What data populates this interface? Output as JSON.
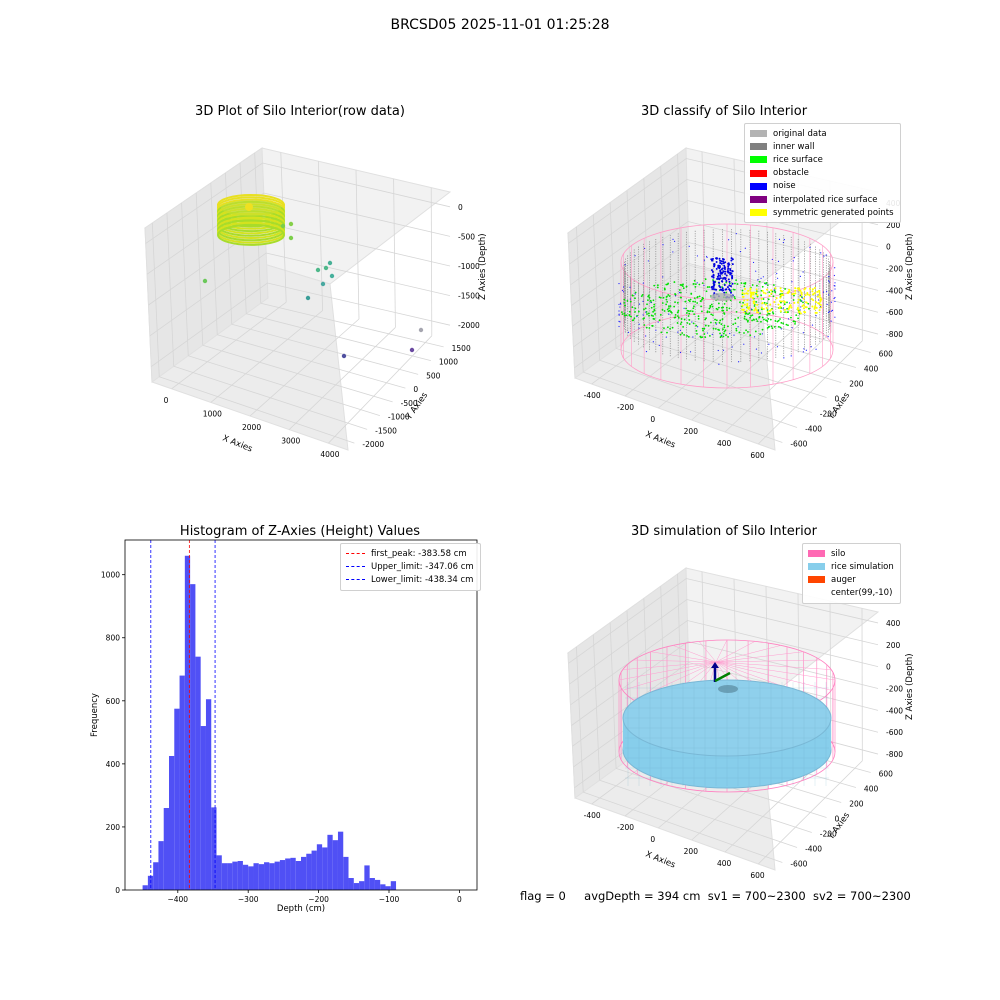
{
  "suptitle": "BRCSD05 2025-11-01 01:25:28",
  "panels": {
    "raw": {
      "title": "3D Plot of Silo Interior(row data)",
      "xlabel": "X Axies",
      "ylabel": "Y Axies",
      "zlabel": "Z Axies (Depth)",
      "xticks": [
        "0",
        "1000",
        "2000",
        "3000",
        "4000"
      ],
      "yticks": [
        "-2000",
        "-1500",
        "-1000",
        "-500",
        "0",
        "500",
        "1000",
        "1500"
      ],
      "zticks": [
        "0",
        "-500",
        "-1000",
        "-1500",
        "-2000"
      ]
    },
    "classify": {
      "title": "3D classify of Silo Interior",
      "xlabel": "X Axies",
      "ylabel": "Y Axies",
      "zlabel": "Z Axies (Depth)",
      "xticks": [
        "-400",
        "-200",
        "0",
        "200",
        "400",
        "600"
      ],
      "yticks": [
        "-600",
        "-400",
        "-200",
        "0",
        "200",
        "400",
        "600"
      ],
      "zticks": [
        "400",
        "200",
        "0",
        "-200",
        "-400",
        "-600",
        "-800"
      ],
      "legend": [
        {
          "label": "original data",
          "color": "#b3b3b3"
        },
        {
          "label": "inner wall",
          "color": "#808080"
        },
        {
          "label": "rice surface",
          "color": "#00ff00"
        },
        {
          "label": "obstacle",
          "color": "#ff0000"
        },
        {
          "label": "noise",
          "color": "#0000ff"
        },
        {
          "label": "interpolated rice surface",
          "color": "#800080"
        },
        {
          "label": "symmetric generated points",
          "color": "#ffff00"
        }
      ]
    },
    "simulation": {
      "title": "3D simulation of Silo Interior",
      "xlabel": "X Axies",
      "ylabel": "Y Axies",
      "zlabel": "Z Axies (Depth)",
      "xticks": [
        "-400",
        "-200",
        "0",
        "200",
        "400",
        "600"
      ],
      "yticks": [
        "-600",
        "-400",
        "-200",
        "0",
        "200",
        "400",
        "600"
      ],
      "zticks": [
        "400",
        "200",
        "0",
        "-200",
        "-400",
        "-600",
        "-800"
      ],
      "legend": [
        {
          "label": "silo",
          "color": "#ff69b4"
        },
        {
          "label": "rice simulation",
          "color": "#87ceeb"
        },
        {
          "label": "auger",
          "color": "#ff4500"
        },
        {
          "label": "center(99,-10)",
          "color": ""
        }
      ]
    }
  },
  "chart_data": {
    "type": "bar",
    "title": "Histogram of Z-Axies (Height) Values",
    "xlabel": "Depth (cm)",
    "ylabel": "Frequency",
    "xlim": [
      -475,
      25
    ],
    "ylim": [
      0,
      1110
    ],
    "xticks": [
      -400,
      -300,
      -200,
      -100,
      0
    ],
    "yticks": [
      0,
      200,
      400,
      600,
      800,
      1000
    ],
    "bin_start": -450,
    "bin_width": 7.5,
    "values": [
      15,
      45,
      88,
      155,
      260,
      425,
      575,
      680,
      1060,
      970,
      740,
      520,
      605,
      262,
      110,
      85,
      85,
      90,
      92,
      80,
      75,
      85,
      82,
      88,
      85,
      90,
      95,
      100,
      102,
      92,
      105,
      115,
      125,
      145,
      135,
      175,
      158,
      185,
      105,
      38,
      22,
      28,
      78,
      38,
      32,
      18,
      12,
      28
    ],
    "bar_color": "#5050f5",
    "vlines": [
      {
        "label": "first_peak: -383.58 cm",
        "x": -383.58,
        "color": "#ff0000"
      },
      {
        "label": "Upper_limit: -347.06 cm",
        "x": -347.06,
        "color": "#0000ff"
      },
      {
        "label": "Lower_limit: -438.34 cm",
        "x": -438.34,
        "color": "#0000ff"
      }
    ],
    "legend_position": "top-right"
  },
  "footer": {
    "flag": "flag = 0",
    "avg": "avgDepth = 394 cm",
    "sv1": "sv1 = 700~2300",
    "sv2": "sv2 = 700~2300"
  }
}
